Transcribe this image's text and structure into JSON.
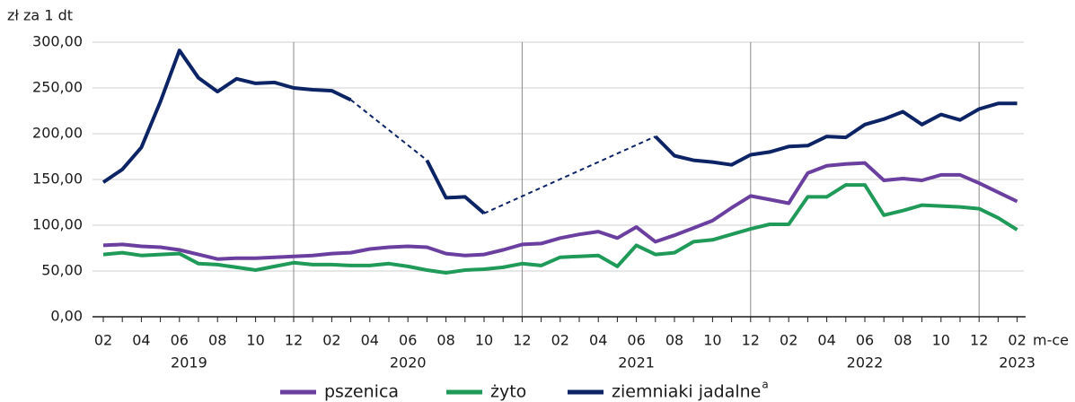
{
  "chart_data": {
    "type": "line",
    "y_axis_label": "zł za 1 dt",
    "x_axis_unit": "m-ce",
    "categories": [
      "02",
      null,
      "04",
      null,
      "06",
      null,
      "08",
      null,
      "10",
      null,
      "12",
      null,
      "02",
      null,
      "04",
      null,
      "06",
      null,
      "08",
      null,
      "10",
      null,
      "12",
      null,
      "02",
      null,
      "04",
      null,
      "06",
      null,
      "08",
      null,
      "10",
      null,
      "12",
      null,
      "02",
      null,
      "04",
      null,
      "06",
      null,
      "08",
      null,
      "10",
      null,
      "12",
      null,
      "02"
    ],
    "years": [
      "2019",
      "2020",
      "2021",
      "2022",
      "2023"
    ],
    "series": [
      {
        "name": "pszenica",
        "color": "#6b3fa0",
        "values": [
          78,
          79,
          77,
          76,
          73,
          68,
          63,
          64,
          64,
          65,
          66,
          67,
          69,
          70,
          74,
          76,
          77,
          76,
          69,
          67,
          68,
          73,
          79,
          80,
          86,
          90,
          93,
          86,
          98,
          82,
          89,
          97,
          105,
          119,
          132,
          128,
          124,
          157,
          165,
          167,
          168,
          149,
          151,
          149,
          155,
          155,
          146,
          136,
          126
        ]
      },
      {
        "name": "żyto",
        "color": "#1f9a58",
        "values": [
          68,
          70,
          67,
          68,
          69,
          58,
          57,
          54,
          51,
          55,
          59,
          57,
          57,
          56,
          56,
          58,
          55,
          51,
          48,
          51,
          52,
          54,
          58,
          56,
          65,
          66,
          67,
          55,
          78,
          68,
          70,
          82,
          84,
          90,
          96,
          101,
          101,
          131,
          131,
          144,
          144,
          111,
          116,
          122,
          121,
          120,
          118,
          108,
          95
        ]
      },
      {
        "name": "ziemniaki jadalne",
        "footnote_mark": "a",
        "color": "#0c2466",
        "gap_style": "dashed",
        "values": [
          147,
          161,
          185,
          235,
          291,
          261,
          246,
          260,
          255,
          256,
          250,
          248,
          247,
          237,
          null,
          null,
          null,
          171,
          130,
          131,
          113,
          null,
          null,
          null,
          null,
          null,
          null,
          null,
          null,
          197,
          176,
          171,
          169,
          166,
          177,
          180,
          186,
          187,
          197,
          196,
          210,
          216,
          224,
          210,
          221,
          215,
          227,
          233,
          233
        ]
      }
    ],
    "ylim": [
      0,
      300
    ],
    "yticks": [
      {
        "value": 0,
        "label": "0,00"
      },
      {
        "value": 50,
        "label": "50,00"
      },
      {
        "value": 100,
        "label": "100,00"
      },
      {
        "value": 150,
        "label": "150,00"
      },
      {
        "value": 200,
        "label": "200,00"
      },
      {
        "value": 250,
        "label": "250,00"
      },
      {
        "value": 300,
        "label": "300,00"
      }
    ],
    "grid": true,
    "legend": "bottom"
  }
}
